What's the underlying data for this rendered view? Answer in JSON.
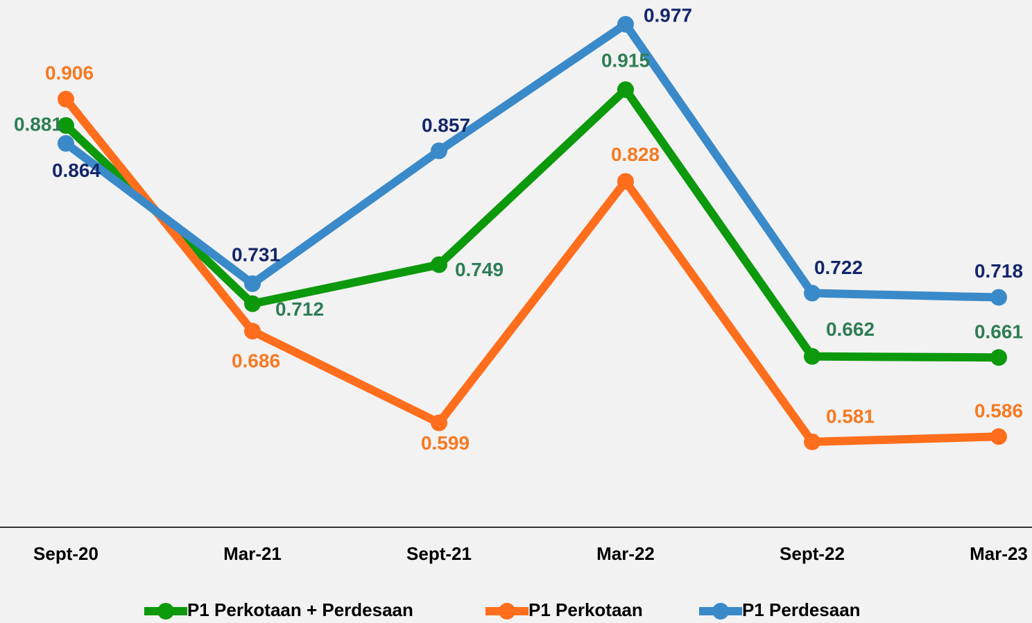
{
  "chart_data": {
    "type": "line",
    "categories": [
      "Sept-20",
      "Mar-21",
      "Sept-21",
      "Mar-22",
      "Sept-22",
      "Mar-23"
    ],
    "series": [
      {
        "name": "P1 Perkotaan + Perdesaan",
        "color": "#0c990c",
        "label_color": "#2e7d55",
        "values": [
          0.881,
          0.712,
          0.749,
          0.915,
          0.662,
          0.661
        ]
      },
      {
        "name": "P1 Perkotaan",
        "color": "#ff6e1c",
        "label_color": "#f57a22",
        "values": [
          0.906,
          0.686,
          0.599,
          0.828,
          0.581,
          0.586
        ]
      },
      {
        "name": "P1 Perdesaan",
        "color": "#3a8ac9",
        "label_color": "#14266b",
        "values": [
          0.864,
          0.731,
          0.857,
          0.977,
          0.722,
          0.718
        ]
      }
    ],
    "ylim": [
      0.5,
      1.0
    ],
    "legend": "bottom"
  }
}
